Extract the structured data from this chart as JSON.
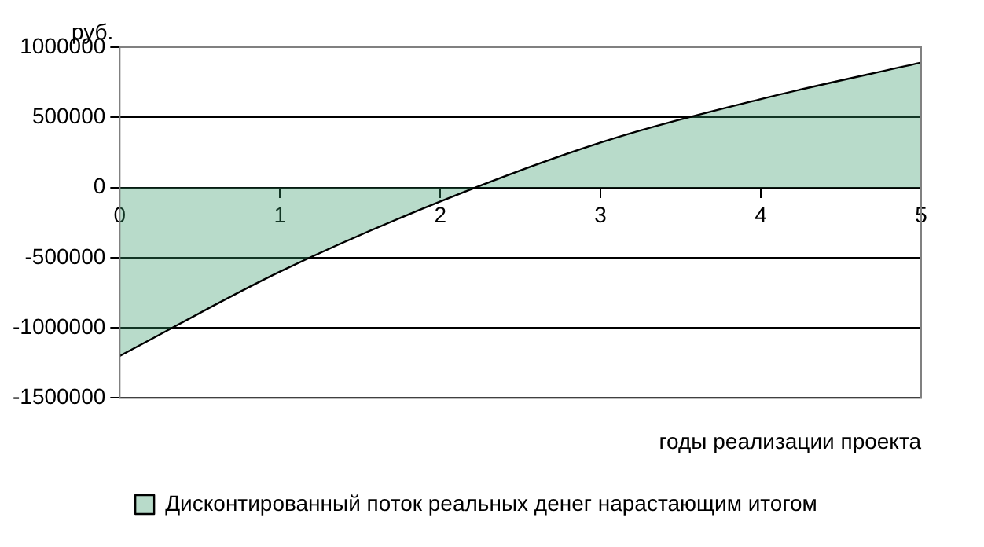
{
  "chart_data": {
    "type": "area",
    "ylabel": "руб.",
    "xlabel": "годы реализации проекта",
    "x": [
      0,
      1,
      2,
      3,
      4,
      5
    ],
    "series": [
      {
        "name": "Дисконтированный поток реальных денег нарастающим итогом",
        "color": "#339966",
        "values": [
          -1200000,
          -600000,
          -100000,
          320000,
          630000,
          890000
        ]
      }
    ],
    "xlim": [
      0,
      5
    ],
    "xticks": [
      0,
      1,
      2,
      3,
      4,
      5
    ],
    "ylim": [
      -1500000,
      1000000
    ],
    "yticks": [
      -1500000,
      -1000000,
      -500000,
      0,
      500000,
      1000000
    ],
    "grid": "y",
    "legend": "bottom"
  }
}
